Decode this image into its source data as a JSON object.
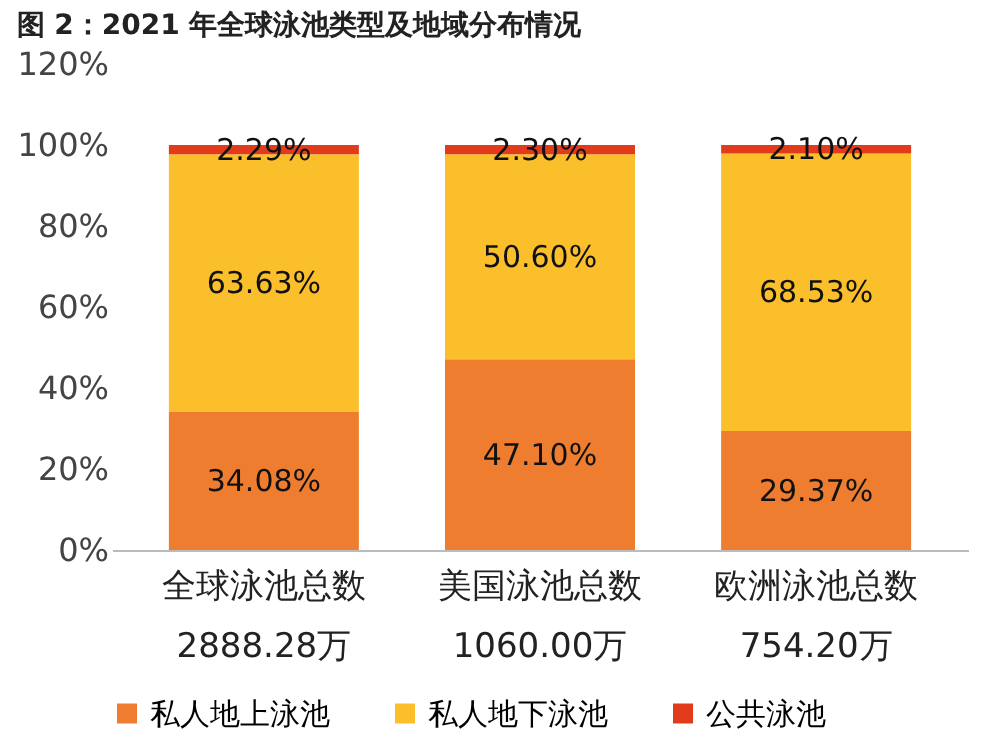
{
  "chart_data": {
    "type": "bar",
    "title": "图 2：2021 年全球泳池类型及地域分布情况",
    "categories": [
      "全球泳池总数\n2888.28万",
      "美国泳池总数\n1060.00万",
      "欧洲泳池总数\n754.20万"
    ],
    "stacked": true,
    "series": [
      {
        "name": "私人地上泳池",
        "color": "#ef7d2f",
        "values": [
          34.08,
          47.1,
          29.37
        ],
        "value_labels": [
          "34.08%",
          "47.10%",
          "29.37%"
        ]
      },
      {
        "name": "私人地下泳池",
        "color": "#fbbf2b",
        "values": [
          63.63,
          50.6,
          68.53
        ],
        "value_labels": [
          "63.63%",
          "50.60%",
          "68.53%"
        ]
      },
      {
        "name": "公共泳池",
        "color": "#e23b1b",
        "values": [
          2.29,
          2.3,
          2.1
        ],
        "value_labels": [
          "2.29%",
          "2.30%",
          "2.10%"
        ]
      }
    ],
    "ylim": [
      0,
      120
    ],
    "yticks": [
      {
        "value": 0,
        "label": "0%"
      },
      {
        "value": 20,
        "label": "20%"
      },
      {
        "value": 40,
        "label": "40%"
      },
      {
        "value": 60,
        "label": "60%"
      },
      {
        "value": 80,
        "label": "80%"
      },
      {
        "value": 100,
        "label": "100%"
      },
      {
        "value": 120,
        "label": "120%"
      }
    ],
    "grid": false,
    "legend": "bottom"
  }
}
